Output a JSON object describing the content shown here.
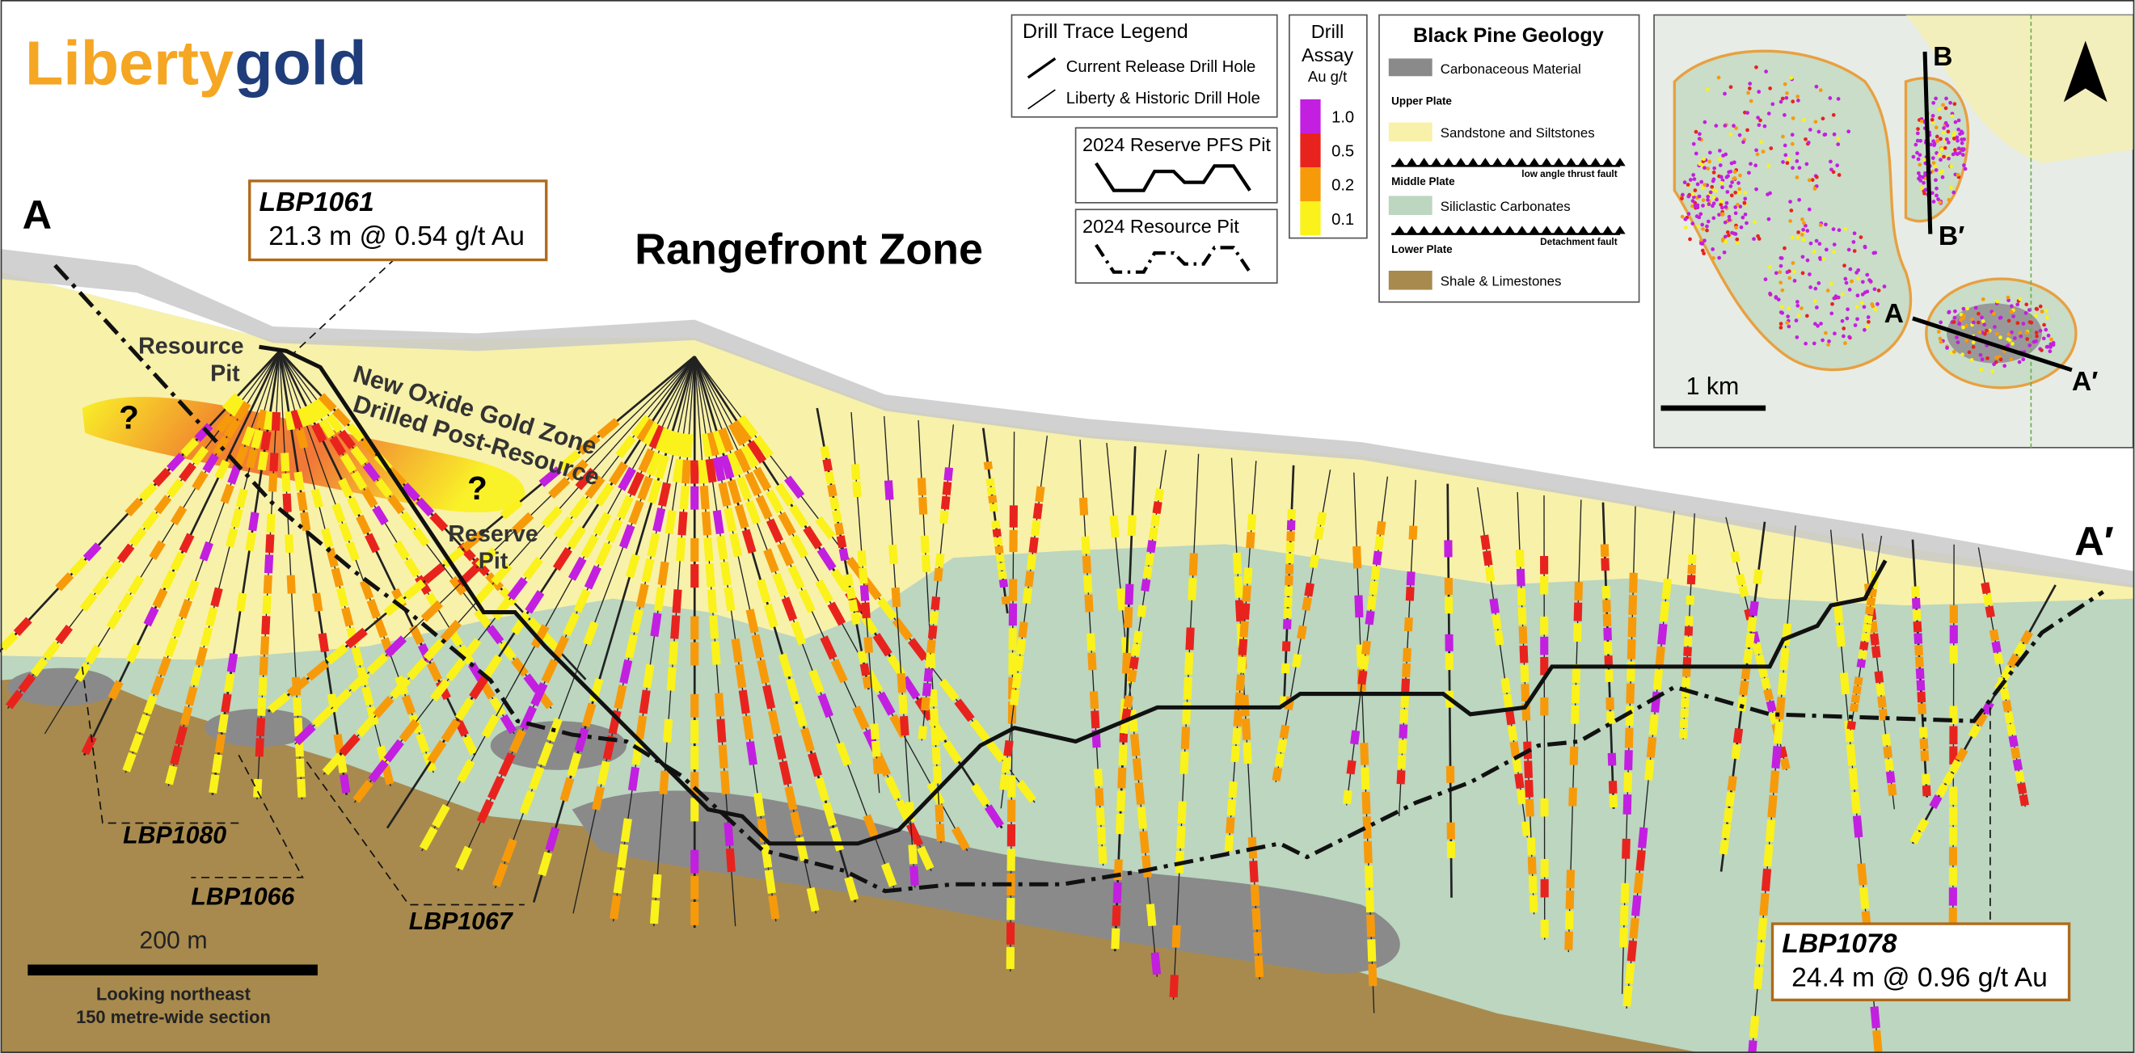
{
  "logo": {
    "part1": "Liberty",
    "part2": "gold"
  },
  "section": {
    "title": "Rangefront Zone",
    "start": "A",
    "end": "A′",
    "callouts": [
      {
        "hole": "LBP1061",
        "result": "21.3 m @ 0.54 g/t Au"
      },
      {
        "hole": "LBP1078",
        "result": "24.4 m @ 0.96 g/t Au"
      }
    ],
    "hole_labels": [
      "LBP1080",
      "LBP1066",
      "LBP1067"
    ],
    "annotations": {
      "resource_pit": [
        "Resource",
        "Pit"
      ],
      "reserve_pit": [
        "Reserve",
        "Pit"
      ],
      "new_zone": [
        "New Oxide Gold Zone",
        "Drilled Post-Resource"
      ],
      "unknown": [
        "?",
        "?"
      ]
    },
    "scale": {
      "label": "200 m",
      "note": [
        "Looking northeast",
        "150 metre-wide section"
      ]
    }
  },
  "drill_trace_legend": {
    "title": "Drill Trace Legend",
    "items": [
      "Current Release Drill Hole",
      "Liberty & Historic Drill Hole"
    ]
  },
  "pit_legend": {
    "reserve": "2024 Reserve PFS Pit",
    "resource": "2024 Resource Pit"
  },
  "assay_legend": {
    "title": [
      "Drill",
      "Assay"
    ],
    "unit": "Au g/t",
    "items": [
      {
        "label": "1.0",
        "color": "#c21fe0"
      },
      {
        "label": "0.5",
        "color": "#e8231e"
      },
      {
        "label": "0.2",
        "color": "#f79a0a"
      },
      {
        "label": "0.1",
        "color": "#faf21a"
      }
    ]
  },
  "geology_legend": {
    "title": "Black Pine Geology",
    "items": [
      "Carbonaceous Material",
      "Upper Plate",
      "Sandstone and Siltstones",
      "low angle thrust fault",
      "Middle Plate",
      "Siliclastic Carbonates",
      "Detachment fault",
      "Lower Plate",
      "Shale & Limestones"
    ]
  },
  "inset": {
    "labels": [
      "B",
      "B′",
      "A",
      "A′"
    ],
    "scale": "1 km"
  }
}
